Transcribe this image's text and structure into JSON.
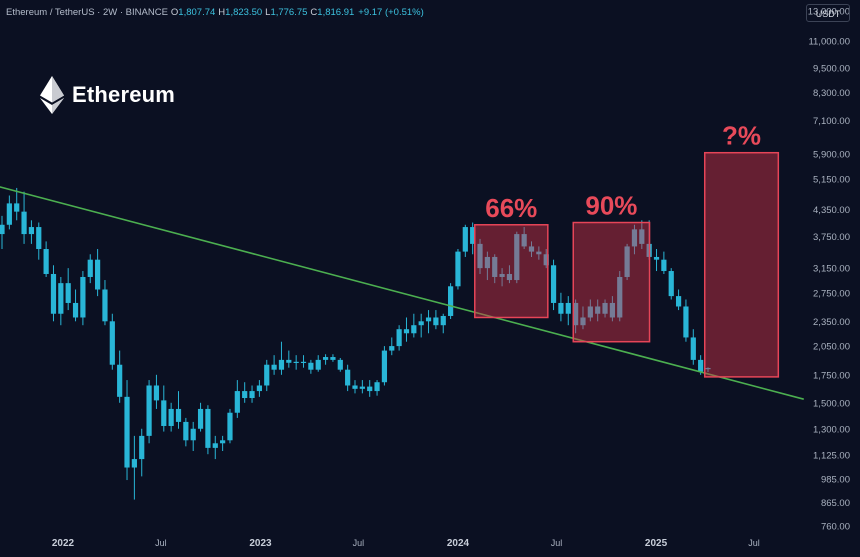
{
  "header": {
    "symbol": "Ethereum / TetherUS · 2W · BINANCE",
    "open_label": "O",
    "open": "1,807.74",
    "high_label": "H",
    "high": "1,823.50",
    "low_label": "L",
    "low": "1,776.75",
    "close_label": "C",
    "close": "1,816.91",
    "change": "+9.17 (+0.51%)"
  },
  "currency_badge": "USDT",
  "logo_text": "Ethereum",
  "colors": {
    "background": "#0b1022",
    "candle": "#29b6d7",
    "trendline": "#4caf50",
    "box_fill": "rgba(210,50,70,0.45)",
    "box_stroke": "#e64558",
    "annotation": "#e84a5a",
    "axis_text": "#aab2c0"
  },
  "chart_data": {
    "type": "candlestick",
    "y_scale": "log",
    "ylim": [
      720,
      13500
    ],
    "y_ticks": [
      760,
      865,
      985,
      1125,
      1300,
      1500,
      1750,
      2050,
      2350,
      2750,
      3150,
      3750,
      4350,
      5150,
      5900,
      7100,
      8300,
      9500,
      11000,
      13000
    ],
    "y_tick_labels": [
      "760.00",
      "865.00",
      "985.00",
      "1,125.00",
      "1,300.00",
      "1,500.00",
      "1,750.00",
      "2,050.00",
      "2,350.00",
      "2,750.00",
      "3,150.00",
      "3,750.00",
      "4,350.00",
      "5,150.00",
      "5,900.00",
      "7,100.00",
      "8,300.00",
      "9,500.00",
      "11,000.00",
      "13,000.00"
    ],
    "x_tick_labels": [
      "2022",
      "Jul",
      "2023",
      "Jul",
      "2024",
      "Jul",
      "2025",
      "Jul"
    ],
    "x_tick_dates": [
      "2022-01-01",
      "2022-07-01",
      "2023-01-01",
      "2023-07-01",
      "2024-01-01",
      "2024-07-01",
      "2025-01-01",
      "2025-07-01"
    ],
    "candles": [
      {
        "o": 3800,
        "h": 4200,
        "l": 3500,
        "c": 4000
      },
      {
        "o": 4000,
        "h": 4700,
        "l": 3900,
        "c": 4500
      },
      {
        "o": 4500,
        "h": 4900,
        "l": 4100,
        "c": 4300
      },
      {
        "o": 4300,
        "h": 4800,
        "l": 3600,
        "c": 3800
      },
      {
        "o": 3800,
        "h": 4100,
        "l": 3600,
        "c": 3950
      },
      {
        "o": 3950,
        "h": 4050,
        "l": 3300,
        "c": 3500
      },
      {
        "o": 3500,
        "h": 3650,
        "l": 3000,
        "c": 3050
      },
      {
        "o": 3050,
        "h": 3200,
        "l": 2350,
        "c": 2450
      },
      {
        "o": 2450,
        "h": 3000,
        "l": 2300,
        "c": 2900
      },
      {
        "o": 2900,
        "h": 3150,
        "l": 2500,
        "c": 2600
      },
      {
        "o": 2600,
        "h": 2800,
        "l": 2350,
        "c": 2400
      },
      {
        "o": 2400,
        "h": 3100,
        "l": 2300,
        "c": 3000
      },
      {
        "o": 3000,
        "h": 3400,
        "l": 2900,
        "c": 3300
      },
      {
        "o": 3300,
        "h": 3500,
        "l": 2700,
        "c": 2800
      },
      {
        "o": 2800,
        "h": 2950,
        "l": 2300,
        "c": 2350
      },
      {
        "o": 2350,
        "h": 2450,
        "l": 1800,
        "c": 1850
      },
      {
        "o": 1850,
        "h": 2000,
        "l": 1500,
        "c": 1550
      },
      {
        "o": 1550,
        "h": 1700,
        "l": 980,
        "c": 1050
      },
      {
        "o": 1050,
        "h": 1250,
        "l": 880,
        "c": 1100
      },
      {
        "o": 1100,
        "h": 1300,
        "l": 1000,
        "c": 1250
      },
      {
        "o": 1250,
        "h": 1700,
        "l": 1200,
        "c": 1650
      },
      {
        "o": 1650,
        "h": 1750,
        "l": 1450,
        "c": 1520
      },
      {
        "o": 1520,
        "h": 1650,
        "l": 1280,
        "c": 1320
      },
      {
        "o": 1320,
        "h": 1500,
        "l": 1280,
        "c": 1450
      },
      {
        "o": 1450,
        "h": 1600,
        "l": 1300,
        "c": 1350
      },
      {
        "o": 1350,
        "h": 1380,
        "l": 1180,
        "c": 1220
      },
      {
        "o": 1220,
        "h": 1350,
        "l": 1150,
        "c": 1300
      },
      {
        "o": 1300,
        "h": 1500,
        "l": 1280,
        "c": 1450
      },
      {
        "o": 1450,
        "h": 1480,
        "l": 1130,
        "c": 1170
      },
      {
        "o": 1170,
        "h": 1250,
        "l": 1100,
        "c": 1200
      },
      {
        "o": 1200,
        "h": 1250,
        "l": 1150,
        "c": 1220
      },
      {
        "o": 1220,
        "h": 1450,
        "l": 1200,
        "c": 1420
      },
      {
        "o": 1420,
        "h": 1700,
        "l": 1380,
        "c": 1600
      },
      {
        "o": 1600,
        "h": 1680,
        "l": 1500,
        "c": 1540
      },
      {
        "o": 1540,
        "h": 1650,
        "l": 1500,
        "c": 1600
      },
      {
        "o": 1600,
        "h": 1700,
        "l": 1550,
        "c": 1650
      },
      {
        "o": 1650,
        "h": 1900,
        "l": 1600,
        "c": 1850
      },
      {
        "o": 1850,
        "h": 1950,
        "l": 1750,
        "c": 1800
      },
      {
        "o": 1800,
        "h": 2100,
        "l": 1750,
        "c": 1900
      },
      {
        "o": 1900,
        "h": 2000,
        "l": 1820,
        "c": 1870
      },
      {
        "o": 1870,
        "h": 1950,
        "l": 1800,
        "c": 1880
      },
      {
        "o": 1880,
        "h": 1950,
        "l": 1820,
        "c": 1870
      },
      {
        "o": 1870,
        "h": 1900,
        "l": 1760,
        "c": 1800
      },
      {
        "o": 1800,
        "h": 1950,
        "l": 1780,
        "c": 1900
      },
      {
        "o": 1900,
        "h": 1960,
        "l": 1850,
        "c": 1930
      },
      {
        "o": 1930,
        "h": 1960,
        "l": 1880,
        "c": 1900
      },
      {
        "o": 1900,
        "h": 1920,
        "l": 1780,
        "c": 1800
      },
      {
        "o": 1800,
        "h": 1850,
        "l": 1600,
        "c": 1650
      },
      {
        "o": 1650,
        "h": 1700,
        "l": 1580,
        "c": 1620
      },
      {
        "o": 1620,
        "h": 1700,
        "l": 1580,
        "c": 1640
      },
      {
        "o": 1640,
        "h": 1700,
        "l": 1550,
        "c": 1600
      },
      {
        "o": 1600,
        "h": 1700,
        "l": 1560,
        "c": 1680
      },
      {
        "o": 1680,
        "h": 2050,
        "l": 1650,
        "c": 2000
      },
      {
        "o": 2000,
        "h": 2150,
        "l": 1950,
        "c": 2050
      },
      {
        "o": 2050,
        "h": 2300,
        "l": 2000,
        "c": 2250
      },
      {
        "o": 2250,
        "h": 2400,
        "l": 2100,
        "c": 2200
      },
      {
        "o": 2200,
        "h": 2450,
        "l": 2150,
        "c": 2300
      },
      {
        "o": 2300,
        "h": 2450,
        "l": 2150,
        "c": 2350
      },
      {
        "o": 2350,
        "h": 2500,
        "l": 2200,
        "c": 2400
      },
      {
        "o": 2400,
        "h": 2500,
        "l": 2250,
        "c": 2300
      },
      {
        "o": 2300,
        "h": 2450,
        "l": 2200,
        "c": 2420
      },
      {
        "o": 2420,
        "h": 2900,
        "l": 2380,
        "c": 2850
      },
      {
        "o": 2850,
        "h": 3500,
        "l": 2800,
        "c": 3450
      },
      {
        "o": 3450,
        "h": 4000,
        "l": 3350,
        "c": 3950
      },
      {
        "o": 3950,
        "h": 4050,
        "l": 3400,
        "c": 3600
      },
      {
        "o": 3600,
        "h": 3700,
        "l": 3050,
        "c": 3150
      },
      {
        "o": 3150,
        "h": 3450,
        "l": 2950,
        "c": 3350
      },
      {
        "o": 3350,
        "h": 3400,
        "l": 2900,
        "c": 3000
      },
      {
        "o": 3000,
        "h": 3150,
        "l": 2850,
        "c": 3050
      },
      {
        "o": 3050,
        "h": 3200,
        "l": 2900,
        "c": 2950
      },
      {
        "o": 2950,
        "h": 3850,
        "l": 2900,
        "c": 3800
      },
      {
        "o": 3800,
        "h": 3950,
        "l": 3500,
        "c": 3550
      },
      {
        "o": 3550,
        "h": 3650,
        "l": 3350,
        "c": 3450
      },
      {
        "o": 3450,
        "h": 3550,
        "l": 3300,
        "c": 3400
      },
      {
        "o": 3400,
        "h": 3500,
        "l": 3150,
        "c": 3200
      },
      {
        "o": 3200,
        "h": 3300,
        "l": 2500,
        "c": 2600
      },
      {
        "o": 2600,
        "h": 2750,
        "l": 2350,
        "c": 2450
      },
      {
        "o": 2450,
        "h": 2700,
        "l": 2300,
        "c": 2600
      },
      {
        "o": 2600,
        "h": 2650,
        "l": 2200,
        "c": 2300
      },
      {
        "o": 2300,
        "h": 2550,
        "l": 2250,
        "c": 2400
      },
      {
        "o": 2400,
        "h": 2650,
        "l": 2350,
        "c": 2550
      },
      {
        "o": 2550,
        "h": 2650,
        "l": 2350,
        "c": 2450
      },
      {
        "o": 2450,
        "h": 2650,
        "l": 2400,
        "c": 2600
      },
      {
        "o": 2600,
        "h": 2700,
        "l": 2350,
        "c": 2400
      },
      {
        "o": 2400,
        "h": 3100,
        "l": 2350,
        "c": 3000
      },
      {
        "o": 3000,
        "h": 3600,
        "l": 2950,
        "c": 3550
      },
      {
        "o": 3550,
        "h": 4000,
        "l": 3400,
        "c": 3900
      },
      {
        "o": 3900,
        "h": 4100,
        "l": 3500,
        "c": 3600
      },
      {
        "o": 3600,
        "h": 4100,
        "l": 3300,
        "c": 3350
      },
      {
        "o": 3350,
        "h": 3500,
        "l": 3100,
        "c": 3300
      },
      {
        "o": 3300,
        "h": 3450,
        "l": 3050,
        "c": 3100
      },
      {
        "o": 3100,
        "h": 3150,
        "l": 2650,
        "c": 2700
      },
      {
        "o": 2700,
        "h": 2800,
        "l": 2500,
        "c": 2550
      },
      {
        "o": 2550,
        "h": 2650,
        "l": 2100,
        "c": 2150
      },
      {
        "o": 2150,
        "h": 2250,
        "l": 1850,
        "c": 1900
      },
      {
        "o": 1900,
        "h": 1950,
        "l": 1750,
        "c": 1780
      },
      {
        "o": 1807.74,
        "h": 1823.5,
        "l": 1776.75,
        "c": 1816.91
      }
    ],
    "trendline": {
      "start": {
        "date": "2021-09-01",
        "value": 4950
      },
      "end": {
        "date": "2025-10-01",
        "value": 1530
      }
    },
    "annotations": [
      {
        "label": "66%",
        "box": {
          "date_start": "2024-02-01",
          "date_end": "2024-06-15",
          "low": 2400,
          "high": 4000
        }
      },
      {
        "label": "90%",
        "box": {
          "date_start": "2024-08-01",
          "date_end": "2024-12-20",
          "low": 2100,
          "high": 4050
        }
      },
      {
        "label": "?%",
        "box": {
          "date_start": "2025-04-01",
          "date_end": "2025-08-15",
          "low": 1730,
          "high": 5950
        }
      }
    ]
  }
}
